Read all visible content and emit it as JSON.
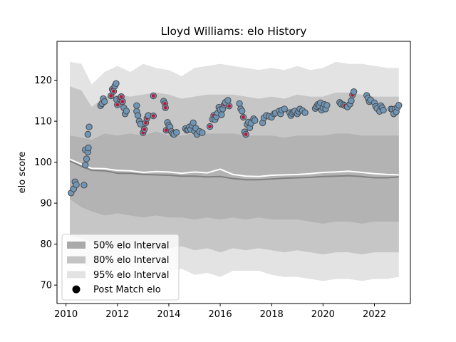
{
  "chart_data": {
    "type": "scatter",
    "title": "Lloyd Williams: elo History",
    "xlabel": "",
    "ylabel": "elo score",
    "xlim": [
      2009.65,
      2023.4
    ],
    "ylim": [
      65.5,
      129.5
    ],
    "x_ticks": [
      2010,
      2012,
      2014,
      2016,
      2018,
      2020,
      2022
    ],
    "y_ticks": [
      70,
      80,
      90,
      100,
      110,
      120
    ],
    "grid": false,
    "legend_position": "lower left",
    "legend": [
      {
        "label": "50% elo Interval",
        "kind": "band",
        "color": "#a9a9a9"
      },
      {
        "label": "80% elo Interval",
        "kind": "band",
        "color": "#c4c4c4"
      },
      {
        "label": "95% elo Interval",
        "kind": "band",
        "color": "#e3e3e3"
      },
      {
        "label": "Post Match elo",
        "kind": "marker",
        "color": "#000000"
      }
    ],
    "colors": {
      "band95": "#e3e3e3",
      "band80": "#c6c6c6",
      "band50": "#b3b3b3",
      "mean_line": "#808080",
      "median_line": "#ffffff",
      "point_fill": "#6f96b7",
      "point_edge": "#4a4a4a",
      "win_fill": "#c81432"
    },
    "interval_x": [
      2010.15,
      2010.6,
      2011.0,
      2011.5,
      2012.0,
      2012.5,
      2013.0,
      2013.5,
      2014.0,
      2014.5,
      2015.0,
      2015.5,
      2016.0,
      2016.5,
      2017.0,
      2017.5,
      2018.0,
      2018.5,
      2019.0,
      2019.5,
      2020.0,
      2020.5,
      2021.0,
      2021.5,
      2022.0,
      2022.5,
      2022.95
    ],
    "band95_upper": [
      124.5,
      124.0,
      119.0,
      122.0,
      123.5,
      122.0,
      124.0,
      123.0,
      122.5,
      121.0,
      123.0,
      123.5,
      124.0,
      123.5,
      123.0,
      122.5,
      123.0,
      122.5,
      123.5,
      122.5,
      123.0,
      124.5,
      124.0,
      124.0,
      123.5,
      123.0,
      123.0
    ],
    "band95_lower": [
      77.0,
      75.0,
      74.5,
      73.0,
      73.5,
      74.5,
      73.0,
      72.5,
      73.5,
      74.0,
      72.5,
      73.0,
      72.0,
      73.5,
      73.5,
      73.5,
      72.5,
      72.0,
      72.0,
      71.5,
      71.0,
      71.5,
      71.5,
      71.0,
      71.5,
      71.5,
      72.0
    ],
    "band80_upper": [
      118.5,
      117.5,
      113.5,
      116.0,
      116.5,
      116.0,
      116.5,
      117.0,
      116.5,
      115.5,
      116.0,
      116.5,
      116.5,
      116.5,
      116.0,
      115.5,
      116.0,
      115.5,
      116.5,
      116.0,
      116.0,
      117.0,
      117.0,
      116.5,
      116.0,
      116.0,
      116.0
    ],
    "band80_lower": [
      82.0,
      81.5,
      80.5,
      79.0,
      79.5,
      80.0,
      79.0,
      78.5,
      79.0,
      79.5,
      78.5,
      79.0,
      78.0,
      79.0,
      78.5,
      79.0,
      78.5,
      78.0,
      78.5,
      78.0,
      77.5,
      78.0,
      78.0,
      77.5,
      78.0,
      78.0,
      78.0
    ],
    "band50_upper": [
      106.5,
      106.0,
      105.5,
      107.0,
      106.5,
      107.0,
      106.5,
      107.5,
      106.5,
      106.5,
      107.0,
      107.0,
      107.0,
      107.0,
      106.5,
      106.5,
      106.5,
      106.0,
      106.5,
      106.5,
      106.5,
      107.0,
      107.0,
      106.5,
      106.5,
      106.5,
      106.5
    ],
    "band50_lower": [
      91.0,
      89.0,
      88.0,
      87.0,
      87.5,
      87.0,
      86.5,
      87.0,
      86.5,
      86.5,
      86.0,
      86.5,
      86.0,
      86.5,
      86.0,
      86.5,
      86.0,
      86.0,
      86.0,
      85.5,
      85.0,
      85.5,
      85.5,
      85.0,
      85.5,
      85.5,
      85.5
    ],
    "mean_line": [
      100.3,
      99.0,
      98.0,
      97.9,
      97.3,
      97.3,
      97.0,
      96.9,
      96.8,
      96.6,
      96.6,
      96.4,
      96.5,
      96.0,
      95.7,
      95.7,
      95.9,
      96.1,
      96.2,
      96.3,
      96.5,
      96.6,
      96.7,
      96.5,
      96.2,
      96.2,
      96.4
    ],
    "median_line": [
      100.7,
      99.5,
      98.5,
      98.4,
      98.0,
      97.9,
      97.5,
      97.7,
      97.6,
      97.3,
      97.6,
      97.4,
      98.3,
      97.0,
      96.6,
      96.5,
      96.8,
      96.9,
      97.0,
      97.2,
      97.5,
      97.6,
      97.8,
      97.5,
      97.2,
      97.0,
      96.9
    ],
    "points": [
      {
        "x": 2010.2,
        "y": 92.5
      },
      {
        "x": 2010.3,
        "y": 93.5
      },
      {
        "x": 2010.35,
        "y": 95.2
      },
      {
        "x": 2010.4,
        "y": 94.5
      },
      {
        "x": 2010.7,
        "y": 94.4
      },
      {
        "x": 2010.75,
        "y": 99.3
      },
      {
        "x": 2010.75,
        "y": 103.0
      },
      {
        "x": 2010.8,
        "y": 100.8
      },
      {
        "x": 2010.85,
        "y": 102.5
      },
      {
        "x": 2010.87,
        "y": 103.5
      },
      {
        "x": 2010.85,
        "y": 106.8
      },
      {
        "x": 2010.9,
        "y": 108.6
      },
      {
        "x": 2011.35,
        "y": 113.8
      },
      {
        "x": 2011.4,
        "y": 114.3
      },
      {
        "x": 2011.45,
        "y": 115.5
      },
      {
        "x": 2011.5,
        "y": 114.8
      },
      {
        "x": 2011.75,
        "y": 116.2,
        "win": true
      },
      {
        "x": 2011.8,
        "y": 117.8,
        "win": true
      },
      {
        "x": 2011.85,
        "y": 117.3,
        "win": true
      },
      {
        "x": 2011.9,
        "y": 118.6
      },
      {
        "x": 2011.95,
        "y": 119.2
      },
      {
        "x": 2011.97,
        "y": 115.3
      },
      {
        "x": 2012.0,
        "y": 114.0,
        "win": true
      },
      {
        "x": 2012.1,
        "y": 115.5,
        "win": true
      },
      {
        "x": 2012.15,
        "y": 116.0,
        "win": true
      },
      {
        "x": 2012.2,
        "y": 114.8,
        "win": true
      },
      {
        "x": 2012.25,
        "y": 113.3
      },
      {
        "x": 2012.3,
        "y": 111.8
      },
      {
        "x": 2012.35,
        "y": 112.5
      },
      {
        "x": 2012.75,
        "y": 113.8
      },
      {
        "x": 2012.75,
        "y": 112.4
      },
      {
        "x": 2012.8,
        "y": 111.4
      },
      {
        "x": 2012.85,
        "y": 110.0
      },
      {
        "x": 2012.9,
        "y": 109.3
      },
      {
        "x": 2013.0,
        "y": 107.2,
        "win": true
      },
      {
        "x": 2013.05,
        "y": 108.0,
        "win": true
      },
      {
        "x": 2013.1,
        "y": 109.6,
        "win": true
      },
      {
        "x": 2013.15,
        "y": 110.7,
        "win": true
      },
      {
        "x": 2013.2,
        "y": 111.4
      },
      {
        "x": 2013.4,
        "y": 116.2,
        "win": true
      },
      {
        "x": 2013.4,
        "y": 111.3,
        "win": true
      },
      {
        "x": 2013.8,
        "y": 114.9
      },
      {
        "x": 2013.85,
        "y": 114.3,
        "win": true
      },
      {
        "x": 2013.87,
        "y": 113.3,
        "win": true
      },
      {
        "x": 2013.9,
        "y": 107.8,
        "win": true
      },
      {
        "x": 2013.95,
        "y": 109.7
      },
      {
        "x": 2014.0,
        "y": 109.0
      },
      {
        "x": 2014.05,
        "y": 108.6
      },
      {
        "x": 2014.1,
        "y": 107.5
      },
      {
        "x": 2014.15,
        "y": 107.0
      },
      {
        "x": 2014.2,
        "y": 106.8
      },
      {
        "x": 2014.3,
        "y": 107.3
      },
      {
        "x": 2014.65,
        "y": 108.2
      },
      {
        "x": 2014.7,
        "y": 107.8
      },
      {
        "x": 2014.75,
        "y": 107.9
      },
      {
        "x": 2014.8,
        "y": 108.6
      },
      {
        "x": 2014.85,
        "y": 108.0
      },
      {
        "x": 2014.9,
        "y": 109.0
      },
      {
        "x": 2014.95,
        "y": 109.6
      },
      {
        "x": 2015.0,
        "y": 107.6
      },
      {
        "x": 2015.05,
        "y": 108.3
      },
      {
        "x": 2015.1,
        "y": 106.8
      },
      {
        "x": 2015.2,
        "y": 107.5
      },
      {
        "x": 2015.3,
        "y": 107.2
      },
      {
        "x": 2015.6,
        "y": 108.7,
        "win": true
      },
      {
        "x": 2015.7,
        "y": 110.5
      },
      {
        "x": 2015.75,
        "y": 111.4,
        "win": true
      },
      {
        "x": 2015.8,
        "y": 110.4
      },
      {
        "x": 2015.85,
        "y": 111.1
      },
      {
        "x": 2015.9,
        "y": 112.0
      },
      {
        "x": 2015.95,
        "y": 113.4
      },
      {
        "x": 2016.0,
        "y": 112.8
      },
      {
        "x": 2016.05,
        "y": 111.6
      },
      {
        "x": 2016.1,
        "y": 113.0
      },
      {
        "x": 2016.15,
        "y": 114.0,
        "win": true
      },
      {
        "x": 2016.2,
        "y": 114.6
      },
      {
        "x": 2016.3,
        "y": 115.1
      },
      {
        "x": 2016.35,
        "y": 113.7,
        "win": true
      },
      {
        "x": 2016.75,
        "y": 114.3
      },
      {
        "x": 2016.8,
        "y": 113.0
      },
      {
        "x": 2016.85,
        "y": 112.5
      },
      {
        "x": 2016.9,
        "y": 111.0,
        "win": true
      },
      {
        "x": 2016.95,
        "y": 107.4
      },
      {
        "x": 2017.0,
        "y": 106.8,
        "win": true
      },
      {
        "x": 2017.05,
        "y": 109.2
      },
      {
        "x": 2017.1,
        "y": 109.8
      },
      {
        "x": 2017.15,
        "y": 108.4
      },
      {
        "x": 2017.2,
        "y": 109.5
      },
      {
        "x": 2017.3,
        "y": 110.6
      },
      {
        "x": 2017.35,
        "y": 110.2
      },
      {
        "x": 2017.65,
        "y": 109.6
      },
      {
        "x": 2017.7,
        "y": 110.8
      },
      {
        "x": 2017.8,
        "y": 111.4
      },
      {
        "x": 2017.9,
        "y": 111.2
      },
      {
        "x": 2018.0,
        "y": 111.0
      },
      {
        "x": 2018.1,
        "y": 111.8
      },
      {
        "x": 2018.15,
        "y": 112.0
      },
      {
        "x": 2018.3,
        "y": 112.5
      },
      {
        "x": 2018.35,
        "y": 111.8
      },
      {
        "x": 2018.4,
        "y": 112.7
      },
      {
        "x": 2018.5,
        "y": 113.0
      },
      {
        "x": 2018.7,
        "y": 112.1
      },
      {
        "x": 2018.75,
        "y": 111.4
      },
      {
        "x": 2018.8,
        "y": 111.9
      },
      {
        "x": 2018.85,
        "y": 112.3
      },
      {
        "x": 2018.9,
        "y": 112.5
      },
      {
        "x": 2019.0,
        "y": 111.8
      },
      {
        "x": 2019.05,
        "y": 112.4
      },
      {
        "x": 2019.1,
        "y": 113.0
      },
      {
        "x": 2019.2,
        "y": 112.6
      },
      {
        "x": 2019.3,
        "y": 112.1
      },
      {
        "x": 2019.7,
        "y": 113.1
      },
      {
        "x": 2019.75,
        "y": 113.6
      },
      {
        "x": 2019.8,
        "y": 114.1
      },
      {
        "x": 2019.85,
        "y": 113.8
      },
      {
        "x": 2019.9,
        "y": 114.5
      },
      {
        "x": 2019.95,
        "y": 112.7
      },
      {
        "x": 2020.0,
        "y": 113.3
      },
      {
        "x": 2020.05,
        "y": 114.1
      },
      {
        "x": 2020.1,
        "y": 113.0
      },
      {
        "x": 2020.15,
        "y": 113.9
      },
      {
        "x": 2020.65,
        "y": 114.6
      },
      {
        "x": 2020.7,
        "y": 114.2
      },
      {
        "x": 2020.8,
        "y": 114.0
      },
      {
        "x": 2020.85,
        "y": 113.8,
        "win": true
      },
      {
        "x": 2020.95,
        "y": 113.5
      },
      {
        "x": 2021.05,
        "y": 114.2
      },
      {
        "x": 2021.1,
        "y": 115.0
      },
      {
        "x": 2021.15,
        "y": 116.4,
        "win": true
      },
      {
        "x": 2021.2,
        "y": 117.2
      },
      {
        "x": 2021.7,
        "y": 116.3
      },
      {
        "x": 2021.75,
        "y": 115.6
      },
      {
        "x": 2021.8,
        "y": 114.8
      },
      {
        "x": 2021.85,
        "y": 115.2
      },
      {
        "x": 2022.0,
        "y": 114.5
      },
      {
        "x": 2022.05,
        "y": 113.6
      },
      {
        "x": 2022.1,
        "y": 113.1
      },
      {
        "x": 2022.2,
        "y": 112.4
      },
      {
        "x": 2022.25,
        "y": 113.8
      },
      {
        "x": 2022.3,
        "y": 113.3
      },
      {
        "x": 2022.35,
        "y": 112.7
      },
      {
        "x": 2022.65,
        "y": 113.0
      },
      {
        "x": 2022.7,
        "y": 112.9
      },
      {
        "x": 2022.75,
        "y": 111.8
      },
      {
        "x": 2022.8,
        "y": 113.0
      },
      {
        "x": 2022.85,
        "y": 112.3
      },
      {
        "x": 2022.9,
        "y": 113.4
      },
      {
        "x": 2022.95,
        "y": 113.9
      }
    ]
  }
}
